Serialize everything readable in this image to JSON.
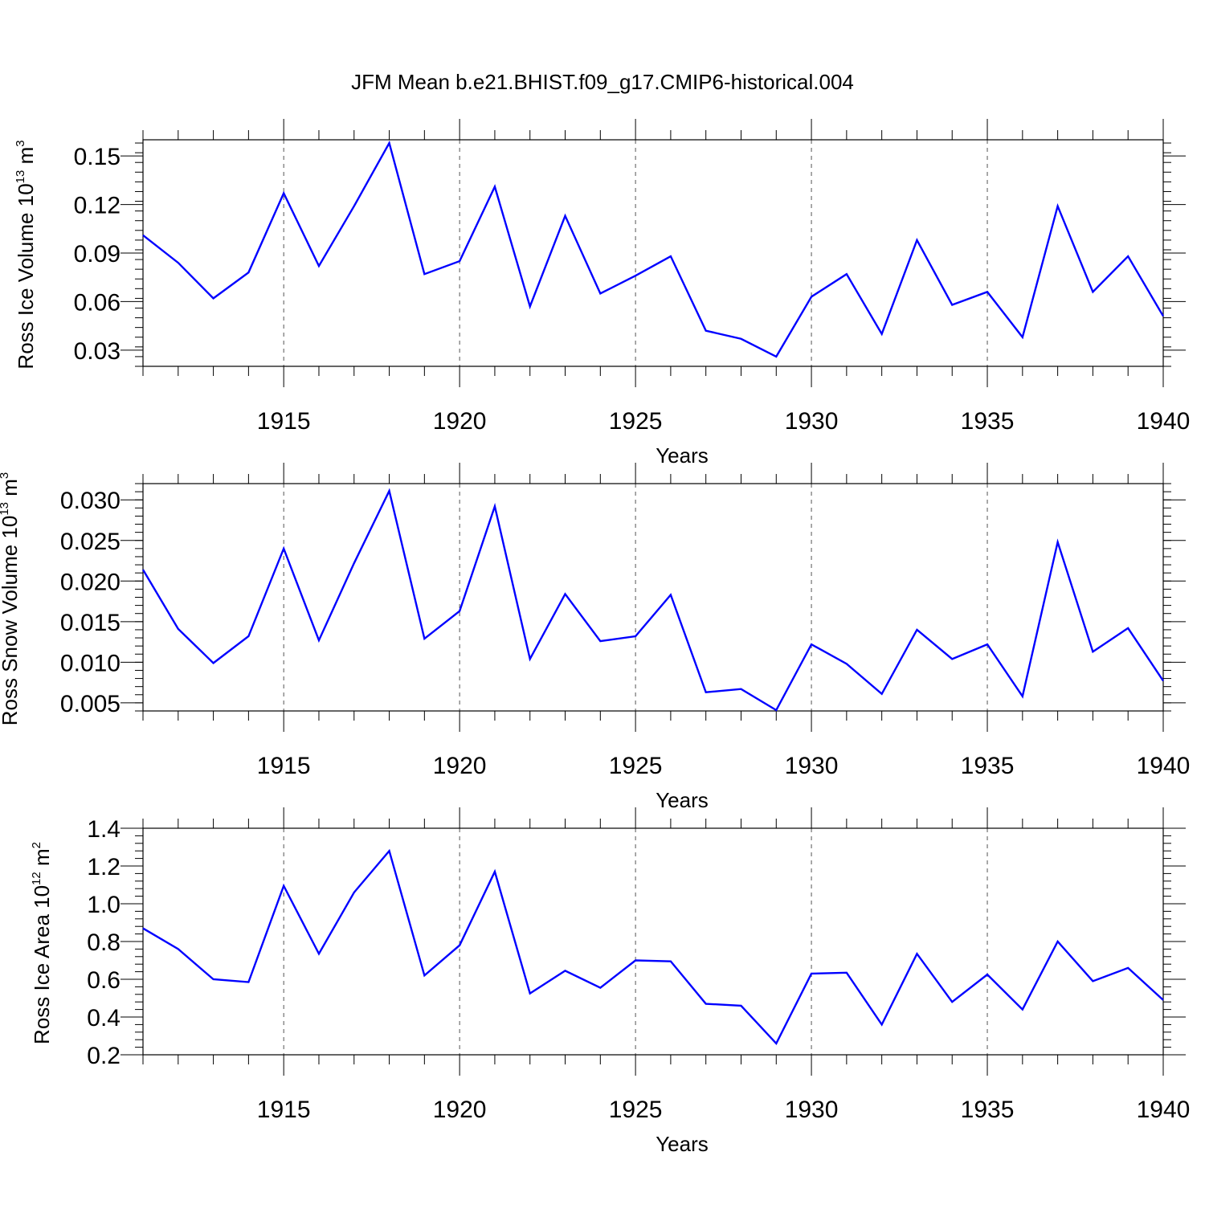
{
  "title": "JFM Mean b.e21.BHIST.f09_g17.CMIP6-historical.004",
  "colors": {
    "line": "#0000ff",
    "axis": "#000000",
    "grid": "#555555"
  },
  "chart_data": [
    {
      "type": "line",
      "title": "",
      "xlabel": "Years",
      "ylabel": {
        "text": "Ross Ice Volume 10",
        "exp": "13",
        "unit": " m",
        "unit_exp": "3"
      },
      "xlim": [
        1911,
        1940
      ],
      "ylim": [
        0.02,
        0.16
      ],
      "xticks": [
        1915,
        1920,
        1925,
        1930,
        1935,
        1940
      ],
      "xtick_labels": [
        "1915",
        "1920",
        "1925",
        "1930",
        "1935",
        "1940"
      ],
      "yticks": [
        0.03,
        0.06,
        0.09,
        0.12,
        0.15
      ],
      "ytick_labels": [
        "0.03",
        "0.06",
        "0.09",
        "0.12",
        "0.15"
      ],
      "x_minor_step": 1,
      "y_minor_step": 0.006,
      "grid": "vertical dashed at major x ticks",
      "x": [
        1911,
        1912,
        1913,
        1914,
        1915,
        1916,
        1917,
        1918,
        1919,
        1920,
        1921,
        1922,
        1923,
        1924,
        1925,
        1926,
        1927,
        1928,
        1929,
        1930,
        1931,
        1932,
        1933,
        1934,
        1935,
        1936,
        1937,
        1938,
        1939,
        1940
      ],
      "series": [
        {
          "values": [
            0.101,
            0.084,
            0.062,
            0.078,
            0.127,
            0.082,
            0.119,
            0.158,
            0.077,
            0.085,
            0.131,
            0.057,
            0.113,
            0.065,
            0.076,
            0.088,
            0.042,
            0.037,
            0.026,
            0.063,
            0.077,
            0.04,
            0.098,
            0.058,
            0.066,
            0.038,
            0.119,
            0.066,
            0.088,
            0.051
          ]
        }
      ]
    },
    {
      "type": "line",
      "title": "",
      "xlabel": "Years",
      "ylabel": {
        "text": "Ross Snow Volume 10",
        "exp": "13",
        "unit": " m",
        "unit_exp": "3"
      },
      "xlim": [
        1911,
        1940
      ],
      "ylim": [
        0.004,
        0.032
      ],
      "xticks": [
        1915,
        1920,
        1925,
        1930,
        1935,
        1940
      ],
      "xtick_labels": [
        "1915",
        "1920",
        "1925",
        "1930",
        "1935",
        "1940"
      ],
      "yticks": [
        0.005,
        0.01,
        0.015,
        0.02,
        0.025,
        0.03
      ],
      "ytick_labels": [
        "0.005",
        "0.010",
        "0.015",
        "0.020",
        "0.025",
        "0.030"
      ],
      "x_minor_step": 1,
      "y_minor_step": 0.001,
      "grid": "vertical dashed at major x ticks",
      "x": [
        1911,
        1912,
        1913,
        1914,
        1915,
        1916,
        1917,
        1918,
        1919,
        1920,
        1921,
        1922,
        1923,
        1924,
        1925,
        1926,
        1927,
        1928,
        1929,
        1930,
        1931,
        1932,
        1933,
        1934,
        1935,
        1936,
        1937,
        1938,
        1939,
        1940
      ],
      "series": [
        {
          "values": [
            0.0214,
            0.0141,
            0.0099,
            0.0132,
            0.024,
            0.0127,
            0.0222,
            0.0311,
            0.0129,
            0.0163,
            0.0292,
            0.0104,
            0.0184,
            0.0126,
            0.0132,
            0.0183,
            0.0063,
            0.0067,
            0.0041,
            0.0122,
            0.0098,
            0.0061,
            0.014,
            0.0104,
            0.0122,
            0.0058,
            0.0248,
            0.0113,
            0.0142,
            0.0077
          ]
        }
      ]
    },
    {
      "type": "line",
      "title": "",
      "xlabel": "Years",
      "ylabel": {
        "text": "Ross Ice Area 10",
        "exp": "12",
        "unit": " m",
        "unit_exp": "2"
      },
      "xlim": [
        1911,
        1940
      ],
      "ylim": [
        0.2,
        1.4
      ],
      "xticks": [
        1915,
        1920,
        1925,
        1930,
        1935,
        1940
      ],
      "xtick_labels": [
        "1915",
        "1920",
        "1925",
        "1930",
        "1935",
        "1940"
      ],
      "yticks": [
        0.2,
        0.4,
        0.6,
        0.8,
        1.0,
        1.2,
        1.4
      ],
      "ytick_labels": [
        "0.2",
        "0.4",
        "0.6",
        "0.8",
        "1.0",
        "1.2",
        "1.4"
      ],
      "x_minor_step": 1,
      "y_minor_step": 0.04,
      "grid": "vertical dashed at major x ticks",
      "x": [
        1911,
        1912,
        1913,
        1914,
        1915,
        1916,
        1917,
        1918,
        1919,
        1920,
        1921,
        1922,
        1923,
        1924,
        1925,
        1926,
        1927,
        1928,
        1929,
        1930,
        1931,
        1932,
        1933,
        1934,
        1935,
        1936,
        1937,
        1938,
        1939,
        1940
      ],
      "series": [
        {
          "values": [
            0.87,
            0.76,
            0.6,
            0.585,
            1.095,
            0.735,
            1.06,
            1.28,
            0.62,
            0.78,
            1.17,
            0.525,
            0.645,
            0.555,
            0.7,
            0.695,
            0.47,
            0.46,
            0.26,
            0.63,
            0.635,
            0.36,
            0.735,
            0.48,
            0.625,
            0.44,
            0.8,
            0.59,
            0.66,
            0.49
          ]
        }
      ]
    }
  ]
}
